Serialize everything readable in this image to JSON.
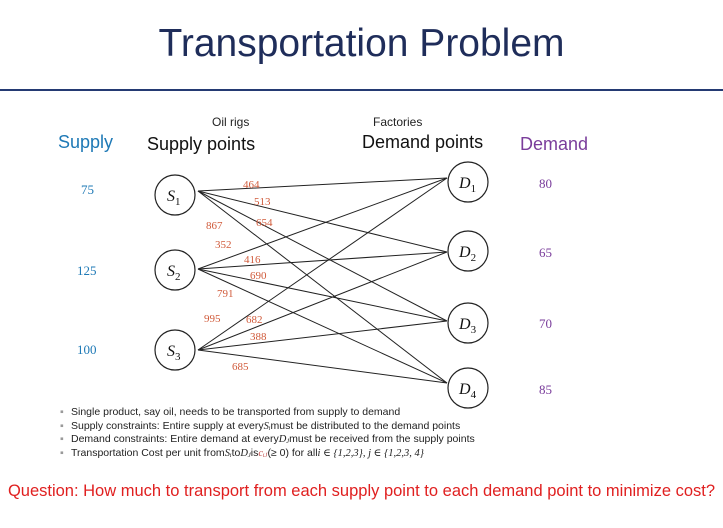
{
  "title": "Transportation Problem",
  "headers": {
    "supply_col": "Supply",
    "oil_rigs": "Oil rigs",
    "supply_points": "Supply points",
    "factories": "Factories",
    "demand_points": "Demand points",
    "demand_col": "Demand"
  },
  "supply_nodes": [
    {
      "base": "S",
      "sub": "1",
      "supply": "75"
    },
    {
      "base": "S",
      "sub": "2",
      "supply": "125"
    },
    {
      "base": "S",
      "sub": "3",
      "supply": "100"
    }
  ],
  "demand_nodes": [
    {
      "base": "D",
      "sub": "1",
      "demand": "80"
    },
    {
      "base": "D",
      "sub": "2",
      "demand": "65"
    },
    {
      "base": "D",
      "sub": "3",
      "demand": "70"
    },
    {
      "base": "D",
      "sub": "4",
      "demand": "85"
    }
  ],
  "costs": {
    "S1": [
      "464",
      "513",
      "654",
      "867"
    ],
    "S2": [
      "352",
      "416",
      "690",
      "791"
    ],
    "S3": [
      "995",
      "682",
      "388",
      "685"
    ]
  },
  "bullets": [
    {
      "parts": [
        "Single product, say oil, needs to be transported from supply to demand"
      ]
    },
    {
      "parts": [
        "Supply constraints: Entire supply at every ",
        "Sᵢ",
        " must be distributed to the demand points"
      ]
    },
    {
      "parts": [
        "Demand constraints: Entire demand at every ",
        "Dⱼ",
        " must be received from the supply points"
      ]
    },
    {
      "parts": [
        "Transportation Cost per unit from ",
        "Sᵢ",
        " to ",
        "Dⱼ",
        " is ",
        "cᵢⱼ",
        "(≥ 0) for all ",
        "i ∈ {1,2,3}, j ∈ {1,2,3, 4}"
      ]
    }
  ],
  "question": "Question: How much to transport from each supply point to each demand point to minimize cost?",
  "colors": {
    "title": "#1f2d5a",
    "supply": "#1e79b6",
    "demand": "#7a3d9b",
    "cost": "#d05a3a",
    "question": "#e02020"
  }
}
